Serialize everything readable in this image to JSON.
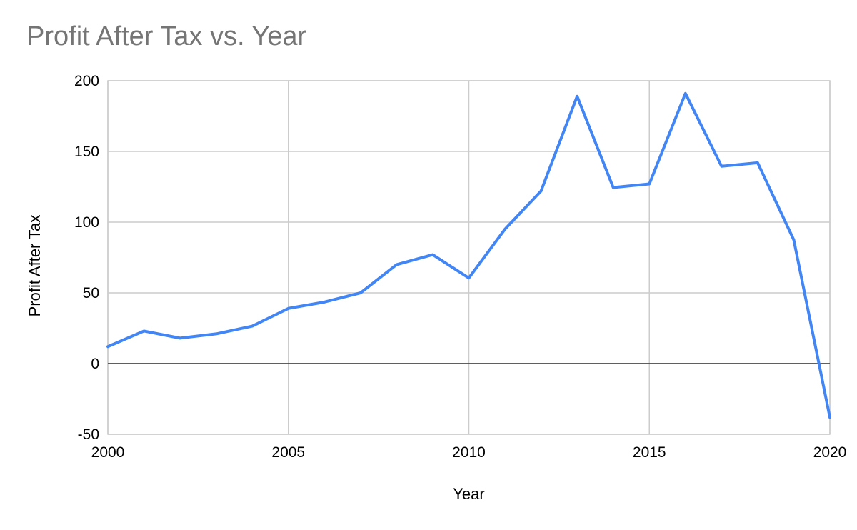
{
  "chart_data": {
    "type": "line",
    "title": "Profit After Tax vs. Year",
    "xlabel": "Year",
    "ylabel": "Profit After Tax",
    "xlim": [
      2000,
      2020
    ],
    "ylim": [
      -50,
      200
    ],
    "x_ticks": [
      2000,
      2005,
      2010,
      2015,
      2020
    ],
    "y_ticks": [
      -50,
      0,
      50,
      100,
      150,
      200
    ],
    "grid": true,
    "legend": "none",
    "series": [
      {
        "color": "#4285f4",
        "x": [
          2000,
          2001,
          2002,
          2003,
          2004,
          2005,
          2006,
          2007,
          2008,
          2009,
          2010,
          2011,
          2012,
          2013,
          2014,
          2015,
          2016,
          2017,
          2018,
          2019,
          2020
        ],
        "y": [
          12,
          23,
          18,
          21,
          26.5,
          39,
          43.5,
          50,
          70,
          77,
          60.5,
          95,
          122,
          189,
          124.5,
          127,
          191,
          139.5,
          142,
          87.5,
          -38
        ]
      }
    ]
  }
}
